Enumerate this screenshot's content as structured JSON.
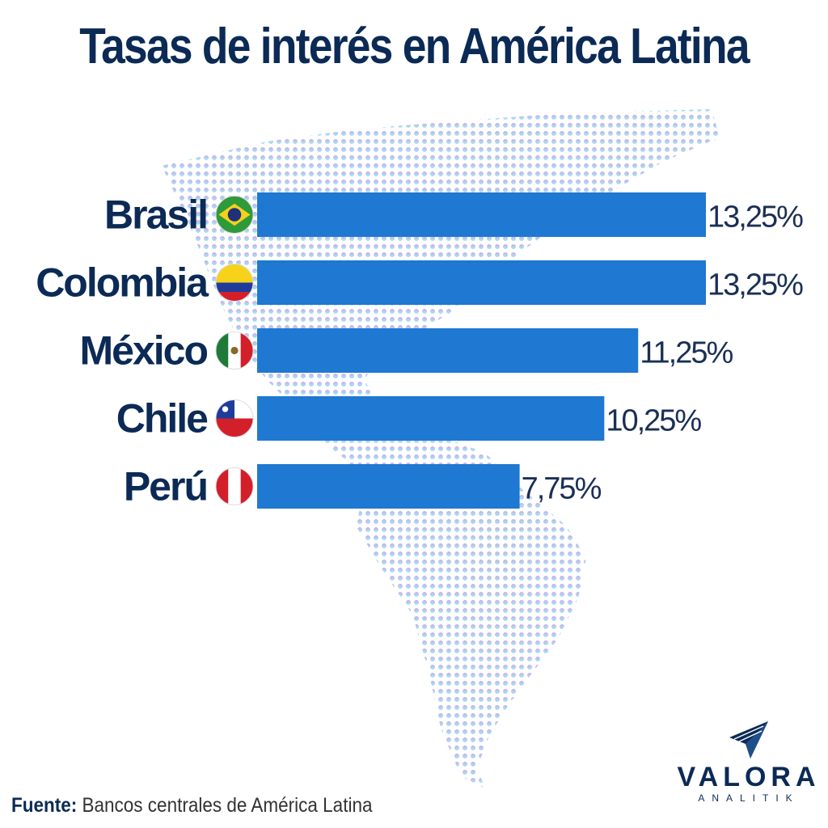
{
  "title": "Tasas de interés en América Latina",
  "source": {
    "label": "Fuente:",
    "text": "Bancos centrales de América Latina"
  },
  "brand": {
    "name": "VALORA",
    "sub": "ANALITIK"
  },
  "colors": {
    "bar": "#1f78d1",
    "title": "#0b2a55",
    "map_top": "#c98be0",
    "map_bottom": "#7fe3e6"
  },
  "chart_data": {
    "type": "bar",
    "orientation": "horizontal",
    "categories": [
      "Brasil",
      "Colombia",
      "México",
      "Chile",
      "Perú"
    ],
    "flags": [
      "brazil-flag-icon",
      "colombia-flag-icon",
      "mexico-flag-icon",
      "chile-flag-icon",
      "peru-flag-icon"
    ],
    "values": [
      13.25,
      13.25,
      11.25,
      10.25,
      7.75
    ],
    "value_labels": [
      "13,25%",
      "13,25%",
      "11,25%",
      "10,25%",
      "7,75%"
    ],
    "title": "Tasas de interés en América Latina",
    "xlabel": "",
    "ylabel": "",
    "xlim": [
      0,
      13.25
    ],
    "grid": false
  }
}
